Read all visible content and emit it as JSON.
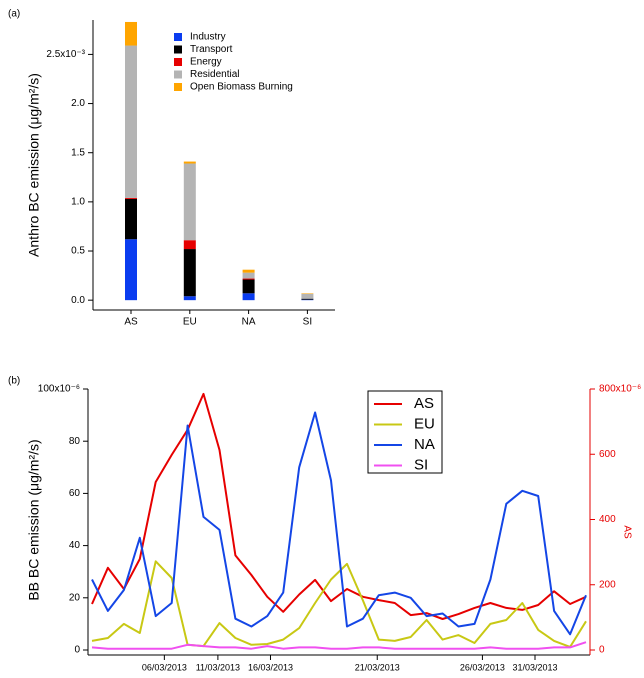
{
  "chart_data": [
    {
      "panel_label": "(a)",
      "type": "bar",
      "stacked": true,
      "ylabel": "Anthro BC emission (μg/m²/s)",
      "categories": [
        "AS",
        "EU",
        "NA",
        "SI"
      ],
      "series": [
        {
          "name": "Industry",
          "color": "#0a3cf0",
          "values": [
            0.62,
            0.04,
            0.07,
            0.005
          ]
        },
        {
          "name": "Transport",
          "color": "#000000",
          "values": [
            0.41,
            0.48,
            0.14,
            0.01
          ]
        },
        {
          "name": "Energy",
          "color": "#e60000",
          "values": [
            0.01,
            0.09,
            0.01,
            0
          ]
        },
        {
          "name": "Residential",
          "color": "#b4b4b4",
          "values": [
            1.55,
            0.78,
            0.06,
            0.05
          ]
        },
        {
          "name": "Open Biomass Burning",
          "color": "#ffa500",
          "values": [
            0.24,
            0.02,
            0.03,
            0.005
          ]
        }
      ],
      "ylim": [
        -0.1,
        2.85
      ],
      "yticks": [
        {
          "value": 0,
          "label": "0.0"
        },
        {
          "value": 0.5,
          "label": "0.5"
        },
        {
          "value": 1,
          "label": "1.0"
        },
        {
          "value": 1.5,
          "label": "1.5"
        },
        {
          "value": 2,
          "label": "2.0"
        },
        {
          "value": 2.5,
          "label": "2.5x10⁻³"
        }
      ]
    },
    {
      "panel_label": "(b)",
      "type": "line",
      "ylabel": "BB BC emission (μg/m²/s)",
      "y2label": "AS",
      "xlim": [
        0,
        31
      ],
      "xticks": [
        {
          "value": 4.54,
          "label": "06/03/2013"
        },
        {
          "value": 7.9,
          "label": "11/03/2013"
        },
        {
          "value": 11.2,
          "label": "16/03/2013"
        },
        {
          "value": 17.9,
          "label": "21/03/2013"
        },
        {
          "value": 24.5,
          "label": "26/03/2013"
        },
        {
          "value": 27.8,
          "label": "31/03/2013"
        }
      ],
      "ylim": [
        0,
        100
      ],
      "yticks": [
        0,
        20,
        40,
        60,
        80,
        {
          "value": 100,
          "label": "100x10⁻⁶"
        }
      ],
      "y2lim": [
        0,
        800
      ],
      "y2ticks": [
        0,
        200,
        400,
        600,
        {
          "value": 800,
          "label": "800x10⁻⁶"
        }
      ],
      "y2color": "#e60000",
      "series": [
        {
          "name": "AS",
          "color": "#e60000",
          "axis": "y2",
          "values": [
            141,
            252,
            187,
            279,
            515,
            598,
            675,
            785,
            613,
            290,
            230,
            163,
            117,
            170,
            215,
            150,
            187,
            163,
            153,
            144,
            107,
            113,
            95,
            110,
            129,
            144,
            129,
            123,
            138,
            180,
            141,
            163
          ]
        },
        {
          "name": "EU",
          "color": "#c8c814",
          "values": [
            3.5,
            4.6,
            10,
            6.5,
            34,
            27.6,
            2,
            1.5,
            10.3,
            4.6,
            2,
            2.3,
            4,
            8.4,
            18,
            27,
            33,
            19,
            4,
            3.5,
            5,
            11.5,
            4,
            5.7,
            2.7,
            10,
            11.5,
            18,
            7.7,
            3.5,
            1.2,
            11
          ]
        },
        {
          "name": "NA",
          "color": "#1446e6",
          "values": [
            27,
            15,
            23,
            43,
            13,
            18,
            86,
            51,
            46,
            12,
            9,
            13,
            22,
            70,
            91,
            65,
            9,
            12,
            21,
            22,
            20,
            13,
            14,
            9,
            10,
            27,
            56,
            61,
            59,
            15,
            6,
            21
          ]
        },
        {
          "name": "SI",
          "color": "#f050f0",
          "values": [
            1,
            0.5,
            0.5,
            0.5,
            0.5,
            0.5,
            2,
            1.5,
            1,
            1,
            0.5,
            1.5,
            0.5,
            1,
            1,
            0.5,
            0.5,
            1,
            1,
            0.5,
            0.5,
            0.5,
            0.5,
            0.5,
            0.5,
            1,
            0.5,
            0.5,
            0.5,
            1,
            1,
            3
          ]
        }
      ]
    }
  ]
}
